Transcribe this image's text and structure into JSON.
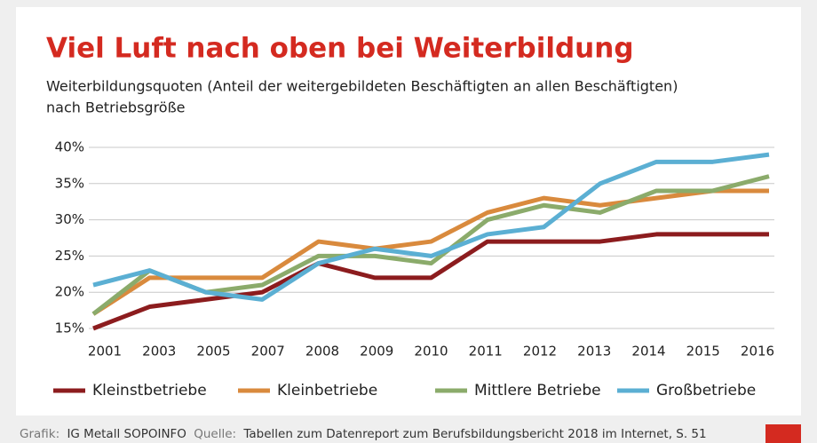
{
  "chart_data": {
    "type": "line",
    "title": "Viel Luft nach oben bei Weiterbildung",
    "subtitle": [
      "Weiterbildungsquoten (Anteil der weitergebildeten Beschäftigten an allen Beschäftigten)",
      "nach Betriebsgröße"
    ],
    "categories": [
      "2001",
      "2003",
      "2005",
      "2007",
      "2008",
      "2009",
      "2010",
      "2011",
      "2012",
      "2013",
      "2014",
      "2015",
      "2016"
    ],
    "series": [
      {
        "name": "Kleinstbetriebe",
        "color": "#8c1c1e",
        "values": [
          15,
          18,
          19,
          20,
          24,
          22,
          22,
          27,
          27,
          27,
          28,
          28,
          28
        ]
      },
      {
        "name": "Kleinbetriebe",
        "color": "#d98a3d",
        "values": [
          17,
          22,
          22,
          22,
          27,
          26,
          27,
          31,
          33,
          32,
          33,
          34,
          34
        ]
      },
      {
        "name": "Mittlere Betriebe",
        "color": "#8bab6b",
        "values": [
          17,
          23,
          20,
          21,
          25,
          25,
          24,
          30,
          32,
          31,
          34,
          34,
          36
        ]
      },
      {
        "name": "Großbetriebe",
        "color": "#5bafd3",
        "values": [
          21,
          23,
          20,
          19,
          24,
          26,
          25,
          28,
          29,
          35,
          38,
          38,
          39
        ]
      }
    ],
    "ylim": [
      15,
      40
    ],
    "yticks": [
      {
        "value": 15,
        "label": "15%"
      },
      {
        "value": 20,
        "label": "20%"
      },
      {
        "value": 25,
        "label": "25%"
      },
      {
        "value": 30,
        "label": "30%"
      },
      {
        "value": 35,
        "label": "35%"
      },
      {
        "value": 40,
        "label": "40%"
      }
    ],
    "grid": true,
    "legend": "bottom",
    "credit_label": "Grafik:",
    "credit": "IG Metall SOPOINFO",
    "source_label": "Quelle:",
    "source": "Tabellen zum Datenreport zum Berufsbildungsbericht 2018 im Internet, S. 51"
  }
}
